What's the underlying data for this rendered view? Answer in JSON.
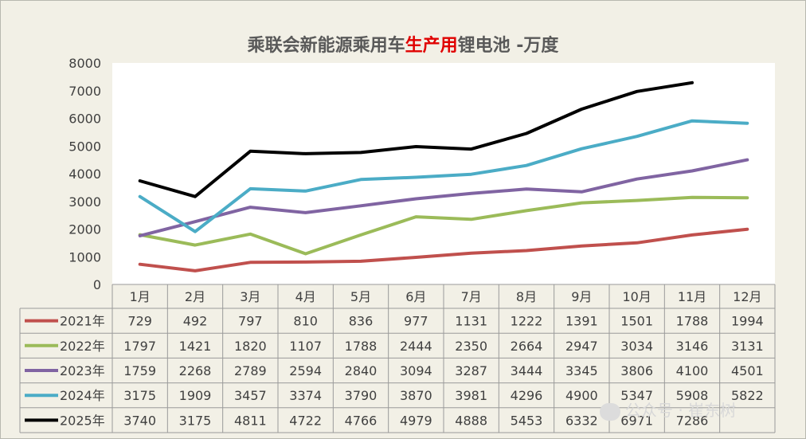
{
  "title": {
    "pre": "乘联会新能源乘用车",
    "highlight": "生产用",
    "post": "锂电池 -万度"
  },
  "watermark": "公众号 · 崔东树",
  "colors": {
    "highlight": "#e00000"
  },
  "chart_data": {
    "type": "line",
    "title": "乘联会新能源乘用车生产用锂电池 -万度",
    "categories": [
      "1月",
      "2月",
      "3月",
      "4月",
      "5月",
      "6月",
      "7月",
      "8月",
      "9月",
      "10月",
      "11月",
      "12月"
    ],
    "ylim": [
      0,
      8000
    ],
    "yticks": [
      0,
      1000,
      2000,
      3000,
      4000,
      5000,
      6000,
      7000,
      8000
    ],
    "grid": false,
    "legend": "data-table",
    "series": [
      {
        "name": "2021年",
        "color": "#c0504d",
        "values": [
          729,
          492,
          797,
          810,
          836,
          977,
          1131,
          1222,
          1391,
          1501,
          1788,
          1994
        ]
      },
      {
        "name": "2022年",
        "color": "#9bbb59",
        "values": [
          1797,
          1421,
          1820,
          1107,
          1788,
          2444,
          2350,
          2664,
          2947,
          3034,
          3146,
          3131
        ]
      },
      {
        "name": "2023年",
        "color": "#8064a2",
        "values": [
          1759,
          2268,
          2789,
          2594,
          2840,
          3094,
          3287,
          3444,
          3345,
          3806,
          4100,
          4501
        ]
      },
      {
        "name": "2024年",
        "color": "#4bacc6",
        "values": [
          3175,
          1909,
          3457,
          3374,
          3790,
          3870,
          3981,
          4296,
          4900,
          5347,
          5908,
          5822
        ]
      },
      {
        "name": "2025年",
        "color": "#000000",
        "values": [
          3740,
          3175,
          4811,
          4722,
          4766,
          4979,
          4888,
          5453,
          6332,
          6971,
          7286,
          null
        ]
      }
    ]
  }
}
